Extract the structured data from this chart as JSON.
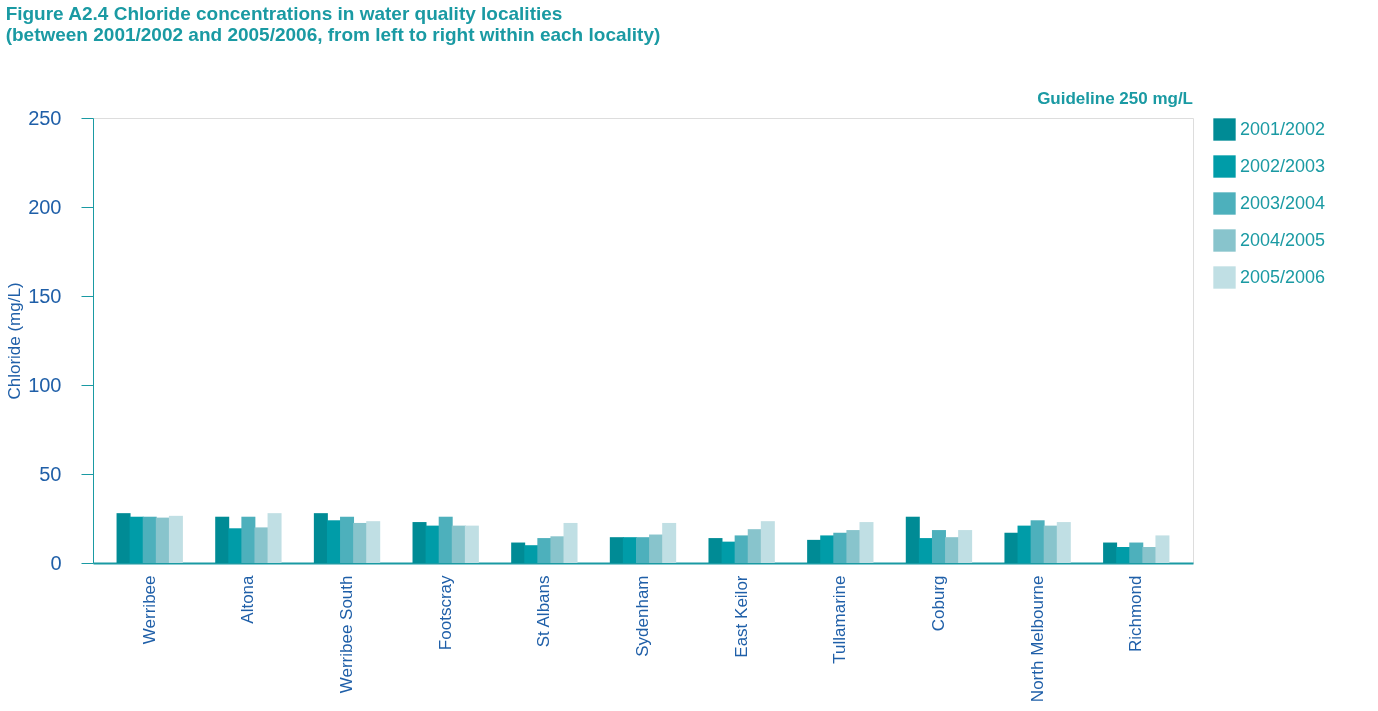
{
  "chart_data": {
    "type": "bar",
    "title": [
      "Figure A2.4 Chloride concentrations in water quality localities",
      "(between 2001/2002 and 2005/2006, from left to right within each locality)"
    ],
    "ylabel": "Chloride (mg/L)",
    "categories": [
      "Werribee",
      "Altona",
      "Werribee South",
      "Footscray",
      "St Albans",
      "Sydenham",
      "East Keilor",
      "Tullamarine",
      "Coburg",
      "North Melbourne",
      "Richmond"
    ],
    "series": [
      {
        "name": "2001/2002",
        "color": "#008b95",
        "values": [
          28,
          26,
          28,
          23,
          11.5,
          14.5,
          14,
          13,
          26,
          17,
          11.5
        ]
      },
      {
        "name": "2002/2003",
        "color": "#009ca8",
        "values": [
          26,
          19.5,
          24,
          21,
          10,
          14.5,
          12,
          15.5,
          14,
          21,
          9
        ]
      },
      {
        "name": "2003/2004",
        "color": "#4db0bc",
        "values": [
          26,
          26,
          26,
          26,
          14,
          14.5,
          15.5,
          17,
          18.5,
          24,
          11.5
        ]
      },
      {
        "name": "2004/2005",
        "color": "#88c4cc",
        "values": [
          25.5,
          20,
          22.5,
          21,
          15,
          16,
          19,
          18.5,
          14.5,
          21,
          9
        ]
      },
      {
        "name": "2005/2006",
        "color": "#c0dfe4",
        "values": [
          26.5,
          28,
          23.5,
          21,
          22.5,
          22.5,
          23.5,
          23,
          18.5,
          23,
          15.5
        ]
      }
    ],
    "ylim": [
      0,
      250
    ],
    "yticks": [
      0,
      50,
      100,
      150,
      200,
      250
    ],
    "grid": false,
    "legend": "top right",
    "annotations": [
      "Guideline 250 mg/L"
    ]
  }
}
